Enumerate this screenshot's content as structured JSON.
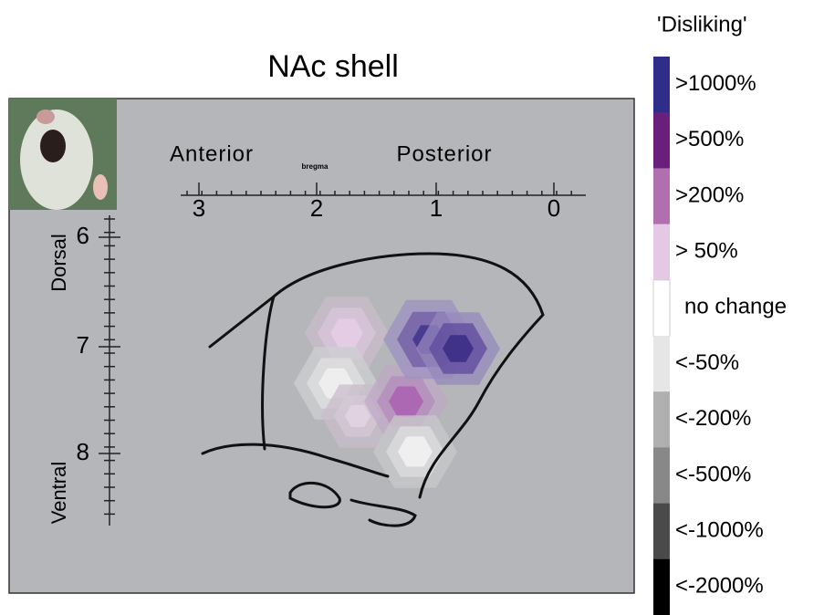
{
  "title": "NAc shell",
  "axes": {
    "horizontal": {
      "anterior": "Anterior",
      "bregma": "bregma",
      "posterior": "Posterior",
      "ticks": [
        "3",
        "2",
        "1",
        "0"
      ]
    },
    "vertical": {
      "dorsal": "Dorsal",
      "ventral": "Ventral",
      "ticks": [
        "6",
        "7",
        "8"
      ]
    }
  },
  "legend": {
    "title": "'Disliking'",
    "items": [
      {
        "label": ">1000%",
        "color": "#2e2e8a"
      },
      {
        "label": ">500%",
        "color": "#6a1f7d"
      },
      {
        "label": ">200%",
        "color": "#b070b0"
      },
      {
        "label": "> 50%",
        "color": "#e4c8e4"
      },
      {
        "label": "no change",
        "color": "#ffffff"
      },
      {
        "label": "<-50%",
        "color": "#e6e6e6"
      },
      {
        "label": "<-200%",
        "color": "#b0b0b0"
      },
      {
        "label": "<-500%",
        "color": "#888888"
      },
      {
        "label": "<-1000%",
        "color": "#4a4a4a"
      },
      {
        "label": "<-2000%",
        "color": "#000000"
      }
    ]
  }
}
